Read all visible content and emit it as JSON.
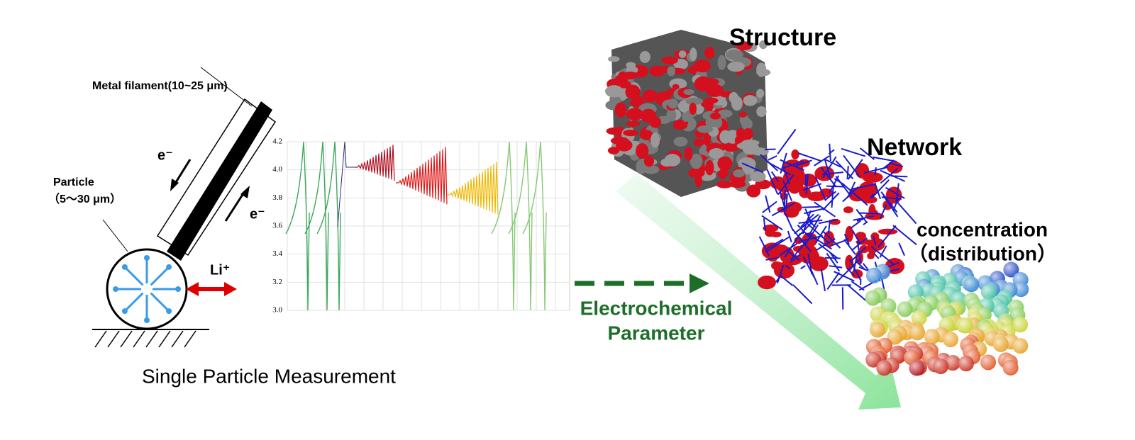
{
  "left": {
    "filament_label": "Metal filament(10~25 μm)",
    "electron_down": "e⁻",
    "electron_up": "e⁻",
    "particle_label": "Particle",
    "particle_size": "（5～30 μm）",
    "ion_label": "Li⁺",
    "caption": "Single Particle Measurement"
  },
  "plot": {
    "yticks": [
      "3.0",
      "3.2",
      "3.4",
      "3.6",
      "3.8",
      "4.0",
      "4.2"
    ]
  },
  "middle": {
    "line1": "Electrochemical",
    "line2": "Parameter"
  },
  "right": {
    "structure": "Structure",
    "network": "Network",
    "concentration1": "concentration",
    "concentration2": "（distribution）"
  }
}
